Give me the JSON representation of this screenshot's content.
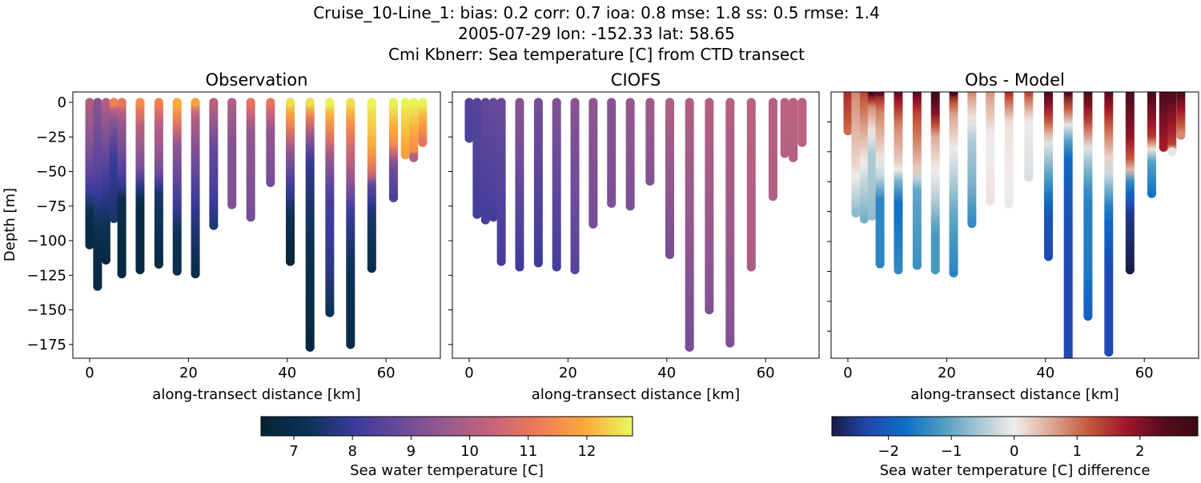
{
  "title_lines": [
    "Cruise_10-Line_1: bias: 0.2  corr: 0.7  ioa: 0.8  mse: 1.8  ss: 0.5  rmse: 1.4",
    "2005-07-29 lon: -152.33 lat: 58.65",
    "Cmi Kbnerr: Sea temperature [C] from CTD transect"
  ],
  "chart_data": [
    {
      "type": "scatter",
      "title": "Observation",
      "xlabel": "along-transect distance [km]",
      "ylabel": "Depth [m]",
      "xlim": [
        -3.6,
        70.8
      ],
      "ylim": [
        -185,
        7.5
      ],
      "xticks": [
        0,
        20,
        40,
        60
      ],
      "yticks": [
        0,
        -25,
        -50,
        -75,
        -100,
        -125,
        -150,
        -175
      ],
      "colormap": "thermal",
      "clim": [
        6.44,
        12.78
      ]
    },
    {
      "type": "scatter",
      "title": "CIOFS",
      "xlabel": "along-transect distance [km]",
      "xlim": [
        -3.6,
        70.8
      ],
      "ylim": [
        -185,
        7.5
      ],
      "xticks": [
        0,
        20,
        40,
        60
      ],
      "yticks": [
        0,
        -25,
        -50,
        -75,
        -100,
        -125,
        -150,
        -175
      ],
      "colormap": "thermal",
      "clim": [
        6.44,
        12.78
      ]
    },
    {
      "type": "scatter",
      "title": "Obs - Model",
      "xlabel": "along-transect distance [km]",
      "xlim": [
        -3.6,
        70.8
      ],
      "ylim": [
        -178,
        0
      ],
      "xticks": [
        0,
        20,
        40,
        60
      ],
      "yticks": [
        -20,
        -40,
        -60,
        -80,
        -100,
        -120,
        -140,
        -160
      ],
      "colormap": "balance",
      "clim": [
        -2.9,
        2.92
      ]
    }
  ],
  "stations": [
    {
      "km": 0.0,
      "obs": [
        [
          0,
          10
        ],
        [
          -40,
          9
        ],
        [
          -65,
          8
        ],
        [
          -80,
          7
        ],
        [
          -103,
          6.8
        ]
      ],
      "model": [
        [
          0,
          8.4
        ],
        [
          -26,
          8.3
        ]
      ]
    },
    {
      "km": 1.6,
      "obs": [
        [
          0,
          9.3
        ],
        [
          -50,
          8.5
        ],
        [
          -80,
          7.5
        ],
        [
          -100,
          7
        ],
        [
          -133,
          6.8
        ]
      ],
      "model": [
        [
          0,
          8.5
        ],
        [
          -81,
          8.2
        ]
      ]
    },
    {
      "km": 3.3,
      "obs": [
        [
          0,
          10
        ],
        [
          -30,
          9
        ],
        [
          -60,
          8
        ],
        [
          -90,
          7.2
        ],
        [
          -114,
          6.8
        ]
      ],
      "model": [
        [
          0,
          8.7
        ],
        [
          -85,
          8.2
        ]
      ]
    },
    {
      "km": 4.9,
      "obs": [
        [
          0,
          11.3
        ],
        [
          -10,
          9.5
        ],
        [
          -40,
          8
        ],
        [
          -60,
          7.8
        ],
        [
          -84,
          7.5
        ]
      ],
      "model": [
        [
          0,
          8.8
        ],
        [
          -83,
          8.2
        ]
      ]
    },
    {
      "km": 6.5,
      "obs": [
        [
          0,
          11
        ],
        [
          -10,
          9.7
        ],
        [
          -40,
          8.8
        ],
        [
          -60,
          8
        ],
        [
          -70,
          7
        ],
        [
          -124,
          6.7
        ]
      ],
      "model": [
        [
          0,
          8.8
        ],
        [
          -115,
          8.2
        ]
      ]
    },
    {
      "km": 10.2,
      "obs": [
        [
          0,
          11.5
        ],
        [
          -20,
          10
        ],
        [
          -50,
          9
        ],
        [
          -60,
          7.8
        ],
        [
          -75,
          6.8
        ],
        [
          -121,
          6.7
        ]
      ],
      "model": [
        [
          0,
          9.3
        ],
        [
          -119,
          8.1
        ]
      ]
    },
    {
      "km": 14.0,
      "obs": [
        [
          0,
          11.3
        ],
        [
          -15,
          10.2
        ],
        [
          -50,
          9
        ],
        [
          -65,
          7.5
        ],
        [
          -117,
          6.8
        ]
      ],
      "model": [
        [
          0,
          9.0
        ],
        [
          -116,
          8.1
        ]
      ]
    },
    {
      "km": 17.7,
      "obs": [
        [
          0,
          12
        ],
        [
          -15,
          11
        ],
        [
          -30,
          9.5
        ],
        [
          -70,
          8.2
        ],
        [
          -95,
          7.2
        ],
        [
          -122,
          7
        ]
      ],
      "model": [
        [
          0,
          9.2
        ],
        [
          -119,
          8.2
        ]
      ]
    },
    {
      "km": 21.4,
      "obs": [
        [
          0,
          11.8
        ],
        [
          -10,
          10
        ],
        [
          -40,
          9
        ],
        [
          -80,
          7.8
        ],
        [
          -124,
          7
        ]
      ],
      "model": [
        [
          0,
          9.3
        ],
        [
          -121,
          8.5
        ]
      ]
    },
    {
      "km": 25.1,
      "obs": [
        [
          0,
          10.2
        ],
        [
          -30,
          8.8
        ],
        [
          -60,
          8.3
        ],
        [
          -89,
          7.6
        ]
      ],
      "model": [
        [
          0,
          9.4
        ],
        [
          -88,
          9.0
        ]
      ]
    },
    {
      "km": 28.8,
      "obs": [
        [
          0,
          10
        ],
        [
          -30,
          9.2
        ],
        [
          -74,
          9.2
        ]
      ],
      "model": [
        [
          0,
          9.3
        ],
        [
          -73,
          9.1
        ]
      ]
    },
    {
      "km": 32.6,
      "obs": [
        [
          0,
          11
        ],
        [
          -20,
          9.5
        ],
        [
          -83,
          9
        ]
      ],
      "model": [
        [
          0,
          9.5
        ],
        [
          -75,
          9.1
        ]
      ]
    },
    {
      "km": 36.6,
      "obs": [
        [
          0,
          11
        ],
        [
          -20,
          9.5
        ],
        [
          -58,
          9
        ]
      ],
      "model": [
        [
          0,
          9.7
        ],
        [
          -57,
          9.2
        ]
      ]
    },
    {
      "km": 40.6,
      "obs": [
        [
          0,
          12.5
        ],
        [
          -20,
          11
        ],
        [
          -35,
          9.5
        ],
        [
          -60,
          8.2
        ],
        [
          -80,
          7.2
        ],
        [
          -115,
          6.6
        ]
      ],
      "model": [
        [
          0,
          10.0
        ],
        [
          -110,
          9.0
        ]
      ]
    },
    {
      "km": 44.6,
      "obs": [
        [
          0,
          12.5
        ],
        [
          -20,
          10
        ],
        [
          -40,
          8
        ],
        [
          -70,
          7.5
        ],
        [
          -120,
          7
        ],
        [
          -177,
          6.7
        ]
      ],
      "model": [
        [
          0,
          10.0
        ],
        [
          -177,
          9.0
        ]
      ]
    },
    {
      "km": 48.6,
      "obs": [
        [
          0,
          12.7
        ],
        [
          -10,
          12
        ],
        [
          -25,
          11
        ],
        [
          -40,
          9.5
        ],
        [
          -70,
          8.2
        ],
        [
          -120,
          7.8
        ],
        [
          -152,
          7.2
        ]
      ],
      "model": [
        [
          0,
          10.1
        ],
        [
          -150,
          9.2
        ]
      ]
    },
    {
      "km": 52.8,
      "obs": [
        [
          0,
          12.5
        ],
        [
          -25,
          11
        ],
        [
          -50,
          9.8
        ],
        [
          -80,
          8
        ],
        [
          -120,
          7.2
        ],
        [
          -175,
          6.9
        ]
      ],
      "model": [
        [
          0,
          10.1
        ],
        [
          -174,
          9.2
        ]
      ]
    },
    {
      "km": 57.1,
      "obs": [
        [
          0,
          12.7
        ],
        [
          -30,
          12
        ],
        [
          -50,
          11
        ],
        [
          -60,
          8.6
        ],
        [
          -80,
          7.5
        ],
        [
          -120,
          7
        ]
      ],
      "model": [
        [
          0,
          10.2
        ],
        [
          -119,
          9.9
        ]
      ]
    },
    {
      "km": 61.5,
      "obs": [
        [
          0,
          12.7
        ],
        [
          -30,
          11.5
        ],
        [
          -45,
          9
        ],
        [
          -69,
          8.3
        ]
      ],
      "model": [
        [
          0,
          10.1
        ],
        [
          -68,
          10.0
        ]
      ]
    },
    {
      "km": 63.9,
      "obs": [
        [
          0,
          12.7
        ],
        [
          -38,
          11.8
        ]
      ],
      "model": [
        [
          0,
          10.2
        ],
        [
          -37,
          10.1
        ]
      ]
    },
    {
      "km": 65.6,
      "obs": [
        [
          0,
          12.7
        ],
        [
          -20,
          12
        ],
        [
          -35,
          11.5
        ],
        [
          -40,
          10
        ]
      ],
      "model": [
        [
          0,
          10.2
        ],
        [
          -40,
          10.1
        ]
      ]
    },
    {
      "km": 67.4,
      "obs": [
        [
          0,
          12.7
        ],
        [
          -20,
          11.5
        ],
        [
          -29,
          11
        ]
      ],
      "model": [
        [
          0,
          10.2
        ],
        [
          -29,
          10.2
        ]
      ]
    }
  ],
  "colorbars": [
    {
      "label": "Sea water temperature [C]",
      "ticks": [
        "7",
        "8",
        "9",
        "10",
        "11",
        "12"
      ],
      "tick_values": [
        7,
        8,
        9,
        10,
        11,
        12
      ],
      "range": [
        6.44,
        12.78
      ],
      "colors": [
        "#042333",
        "#0c3255",
        "#3a3a9c",
        "#6a4a9a",
        "#9a5a8c",
        "#c7647a",
        "#ee7c55",
        "#fbab3c",
        "#e8fa5b"
      ]
    },
    {
      "label": "Sea water temperature [C] difference",
      "ticks": [
        "−2",
        "−1",
        "0",
        "1",
        "2"
      ],
      "tick_values": [
        -2,
        -1,
        0,
        1,
        2
      ],
      "range": [
        -2.9,
        2.92
      ],
      "colors": [
        "#181c43",
        "#1f48b0",
        "#0e6ec8",
        "#4b9bc0",
        "#a6c6d2",
        "#f1eceb",
        "#dca793",
        "#c45a3c",
        "#a3172a",
        "#5a0d1f",
        "#3c0912"
      ]
    }
  ]
}
